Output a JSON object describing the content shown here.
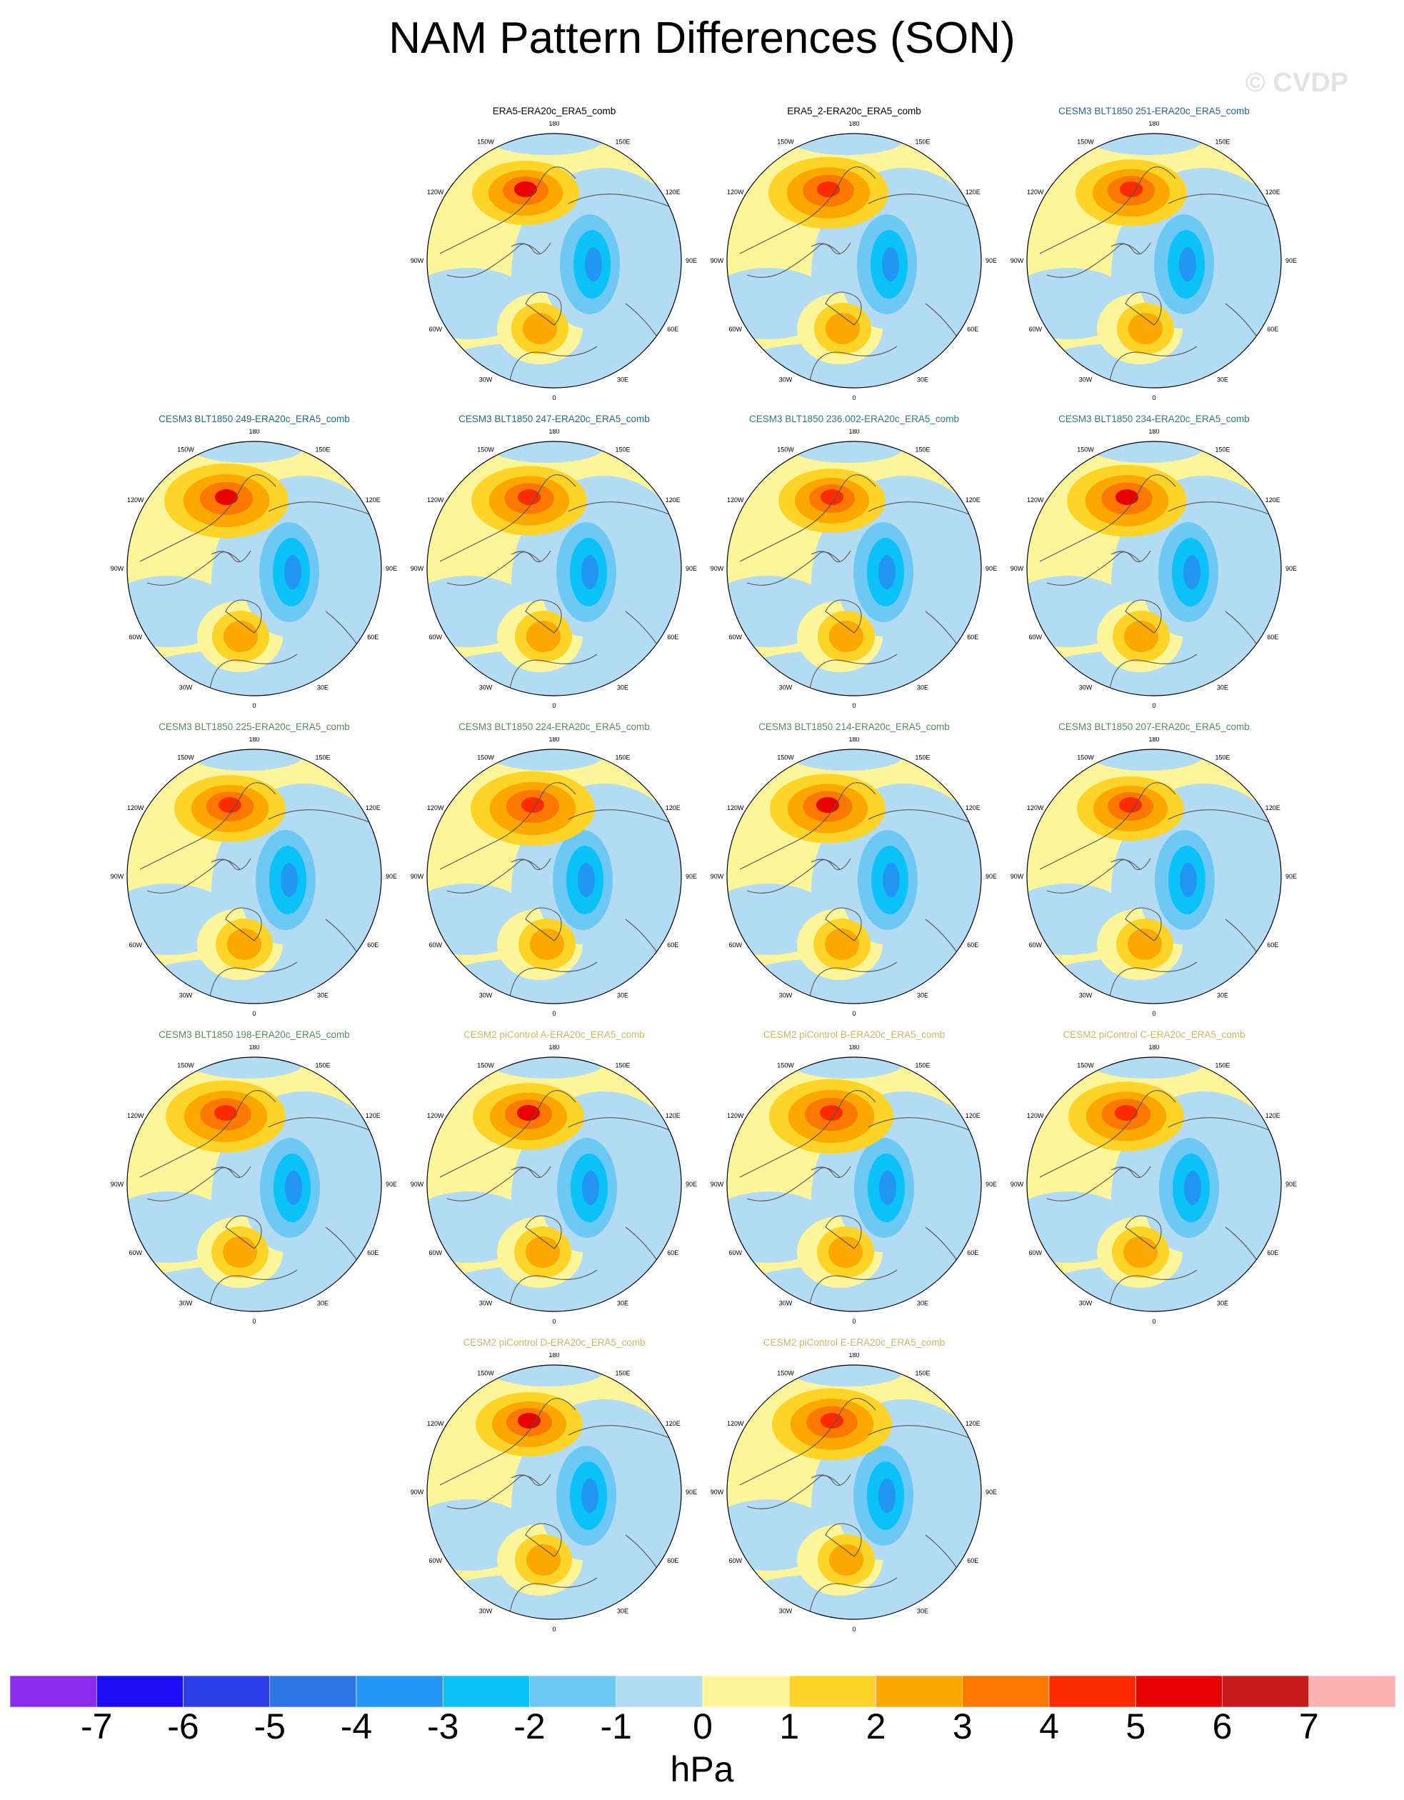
{
  "title": "NAM Pattern Differences (SON)",
  "watermark": "© CVDP",
  "lon_labels": [
    "180",
    "150E",
    "120E",
    "90E",
    "60E",
    "30E",
    "0",
    "30W",
    "60W",
    "90W",
    "120W",
    "150W"
  ],
  "colors": {
    "obs_title": "#000000",
    "cesm3_251": "#1f6a8e",
    "cesm3_mid": "#2f7d7e",
    "cesm3_green": "#5a8a62",
    "cesm2": "#c8b86a",
    "land_line": "#555555"
  },
  "panels": [
    {
      "title": "ERA5-ERA20c_ERA5_comb",
      "color": "obs_title"
    },
    {
      "title": "ERA5_2-ERA20c_ERA5_comb",
      "color": "obs_title"
    },
    {
      "title": "CESM3 BLT1850 251-ERA20c_ERA5_comb",
      "color": "cesm3_251"
    },
    {
      "title": "CESM3 BLT1850 249-ERA20c_ERA5_comb",
      "color": "cesm3_251"
    },
    {
      "title": "CESM3 BLT1850 247-ERA20c_ERA5_comb",
      "color": "cesm3_251"
    },
    {
      "title": "CESM3 BLT1850 236.002-ERA20c_ERA5_comb",
      "color": "cesm3_mid"
    },
    {
      "title": "CESM3 BLT1850 234-ERA20c_ERA5_comb",
      "color": "cesm3_mid"
    },
    {
      "title": "CESM3 BLT1850 225-ERA20c_ERA5_comb",
      "color": "cesm3_green"
    },
    {
      "title": "CESM3 BLT1850 224-ERA20c_ERA5_comb",
      "color": "cesm3_green"
    },
    {
      "title": "CESM3 BLT1850 214-ERA20c_ERA5_comb",
      "color": "cesm3_green"
    },
    {
      "title": "CESM3 BLT1850 207-ERA20c_ERA5_comb",
      "color": "cesm3_green"
    },
    {
      "title": "CESM3 BLT1850 198-ERA20c_ERA5_comb",
      "color": "cesm3_green"
    },
    {
      "title": "CESM2 piControl A-ERA20c_ERA5_comb",
      "color": "cesm2"
    },
    {
      "title": "CESM2 piControl B-ERA20c_ERA5_comb",
      "color": "cesm2"
    },
    {
      "title": "CESM2 piControl C-ERA20c_ERA5_comb",
      "color": "cesm2"
    },
    {
      "title": "CESM2 piControl D-ERA20c_ERA5_comb",
      "color": "cesm2"
    },
    {
      "title": "CESM2 piControl E-ERA20c_ERA5_comb",
      "color": "cesm2"
    }
  ],
  "colorbar": {
    "units": "hPa",
    "ticks": [
      "-7",
      "-6",
      "-5",
      "-4",
      "-3",
      "-2",
      "-1",
      "0",
      "1",
      "2",
      "3",
      "4",
      "5",
      "6",
      "7"
    ],
    "colors": [
      "#8a2cf0",
      "#1b0cf5",
      "#2a3fe6",
      "#3174e8",
      "#2196f3",
      "#0ac2f7",
      "#6ec8f4",
      "#b3dcf4",
      "#fdf59a",
      "#fdd427",
      "#fca800",
      "#fc7800",
      "#fc2c00",
      "#e80000",
      "#c81b1b",
      "#fcb2b2"
    ]
  }
}
